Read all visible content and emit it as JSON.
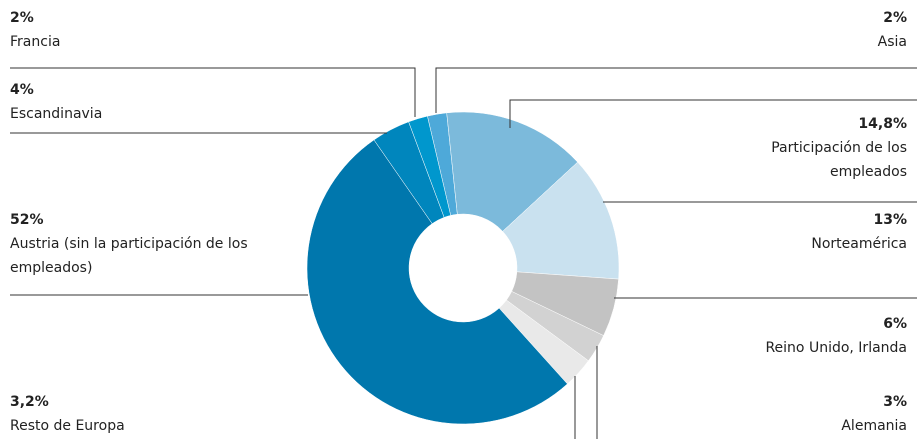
{
  "chart_data": {
    "type": "donut",
    "categories": [
      "Asia",
      "Participación de los empleados",
      "Norteamérica",
      "Reino Unido, Irlanda",
      "Alemania",
      "Resto de Europa",
      "Austria (sin la participación de los empleados)",
      "Escandinavia",
      "Francia"
    ],
    "values": [
      2,
      14.8,
      13,
      6,
      3,
      3.2,
      52,
      4,
      2
    ],
    "value_labels": [
      "2%",
      "14,8%",
      "13%",
      "6%",
      "3%",
      "3,2%",
      "52%",
      "4%",
      "2%"
    ],
    "colors": [
      "#4ea9d9",
      "#7cbadb",
      "#c9e1ef",
      "#c3c3c3",
      "#d2d2d2",
      "#e9e9e9",
      "#0077ad",
      "#0086bd",
      "#0097cd"
    ]
  }
}
